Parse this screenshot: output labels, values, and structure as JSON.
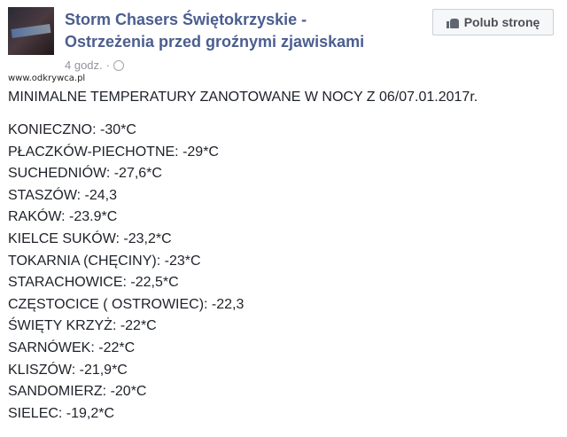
{
  "post": {
    "page_name_line1": "Storm Chasers Świętokrzyskie -",
    "page_name_line2": "Ostrzeżenia przed groźnymi zjawiskami",
    "time": "4 godz.",
    "separator": "·",
    "watermark": "www.odkrywca.pl",
    "like_button": "Polub stronę",
    "heading": "MINIMALNE TEMPERATURY ZANOTOWANE W NOCY Z 06/07.01.2017r.",
    "items": [
      "KONIECZNO: -30*C",
      "PŁACZKÓW-PIECHOTNE: -29*C",
      "SUCHEDNIÓW: -27,6*C",
      "STASZÓW: -24,3",
      "RAKÓW: -23.9*C",
      "KIELCE SUKÓW: -23,2*C",
      "TOKARNIA (CHĘCINY): -23*C",
      "STARACHOWICE: -22,5*C",
      "CZĘSTOCICE ( OSTROWIEC): -22,3",
      "ŚWIĘTY KRZYŻ: -22*C",
      "SARNÓWEK: -22*C",
      "KLISZÓW: -21,9*C",
      "SANDOMIERZ: -20*C",
      "SIELEC: -19,2*C"
    ]
  }
}
